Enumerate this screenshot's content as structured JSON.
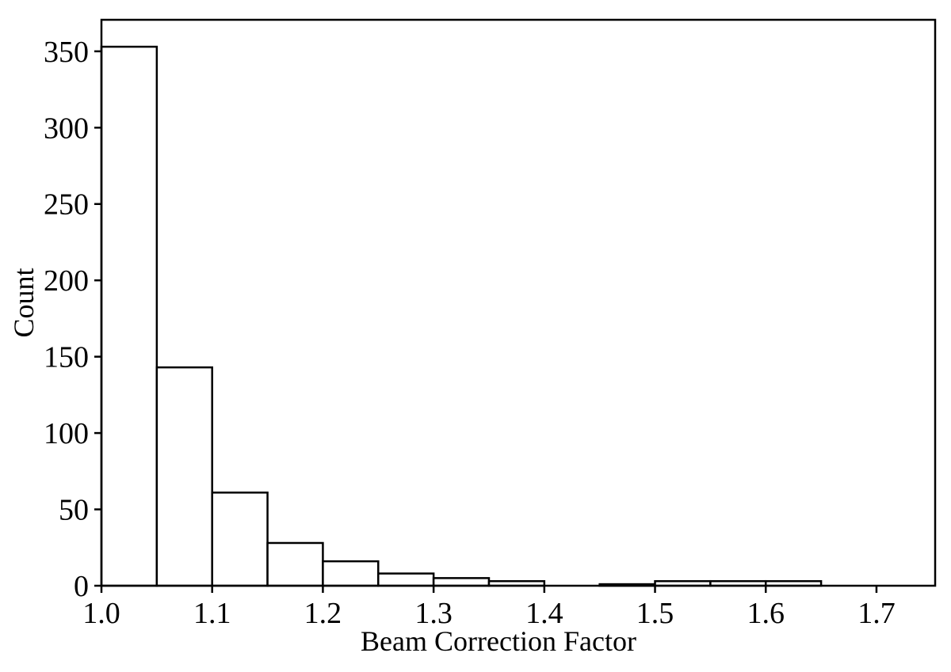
{
  "chart_data": {
    "type": "bar",
    "subtype": "histogram",
    "title": "",
    "xlabel": "Beam Correction Factor",
    "ylabel": "Count",
    "bin_start": 1.0,
    "bin_width": 0.05,
    "bin_edges": [
      1.0,
      1.05,
      1.1,
      1.15,
      1.2,
      1.25,
      1.3,
      1.35,
      1.4,
      1.45,
      1.5,
      1.55,
      1.6,
      1.65,
      1.7
    ],
    "counts": [
      353,
      143,
      61,
      28,
      16,
      8,
      5,
      3,
      0,
      1,
      3,
      3,
      3,
      0
    ],
    "xlim": [
      1.0,
      1.753
    ],
    "ylim": [
      0,
      370.65
    ],
    "x_tick_values": [
      1.0,
      1.1,
      1.2,
      1.3,
      1.4,
      1.5,
      1.6,
      1.7
    ],
    "x_tick_labels": [
      "1.0",
      "1.1",
      "1.2",
      "1.3",
      "1.4",
      "1.5",
      "1.6",
      "1.7"
    ],
    "y_tick_values": [
      0,
      50,
      100,
      150,
      200,
      250,
      300,
      350
    ],
    "y_tick_labels": [
      "0",
      "50",
      "100",
      "150",
      "200",
      "250",
      "300",
      "350"
    ],
    "grid": false,
    "legend": null,
    "bar_fill": "#ffffff",
    "bar_stroke": "#000000",
    "axis_color": "#000000",
    "background": "#ffffff"
  }
}
